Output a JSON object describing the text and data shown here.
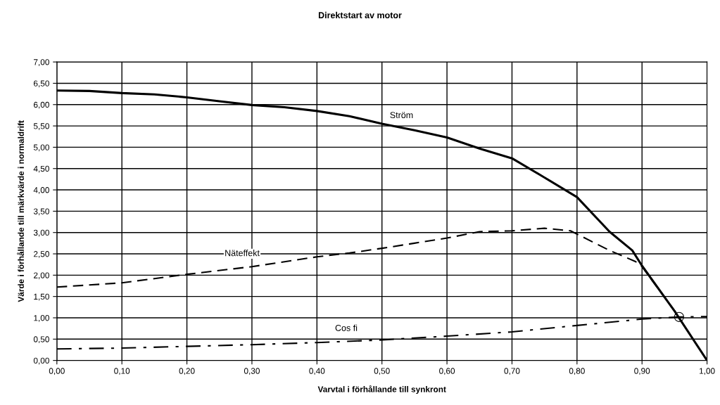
{
  "chart_data": {
    "type": "line",
    "title": "Direktstart av motor",
    "xlabel": "Varvtal i förhållande till synkront",
    "ylabel": "Värde i förhållande till märkvärde i normaldrift",
    "series": [
      {
        "name": "Ström",
        "color": "#000000",
        "line_style": "solid",
        "x": [
          0,
          0.05,
          0.1,
          0.15,
          0.2,
          0.25,
          0.3,
          0.35,
          0.4,
          0.45,
          0.5,
          0.55,
          0.6,
          0.65,
          0.7,
          0.75,
          0.8,
          0.85,
          0.885,
          0.9,
          0.95,
          1.0
        ],
        "values": [
          6.33,
          6.32,
          6.27,
          6.24,
          6.17,
          6.08,
          5.99,
          5.94,
          5.85,
          5.73,
          5.55,
          5.4,
          5.23,
          4.97,
          4.74,
          4.29,
          3.83,
          3.02,
          2.58,
          2.22,
          1.16,
          0
        ]
      },
      {
        "name": "Näteffekt",
        "color": "#000000",
        "line_style": "dashed",
        "x": [
          0,
          0.05,
          0.1,
          0.2,
          0.3,
          0.4,
          0.45,
          0.5,
          0.55,
          0.6,
          0.65,
          0.7,
          0.75,
          0.79,
          0.85,
          0.89,
          0.9,
          0.957
        ],
        "values": [
          1.72,
          1.77,
          1.82,
          2.02,
          2.2,
          2.43,
          2.52,
          2.63,
          2.75,
          2.87,
          3.02,
          3.04,
          3.1,
          3.04,
          2.58,
          2.32,
          2.2,
          1.02
        ]
      },
      {
        "name": "Cos fi",
        "color": "#000000",
        "line_style": "dashdot",
        "x": [
          0,
          0.1,
          0.2,
          0.3,
          0.4,
          0.5,
          0.6,
          0.7,
          0.8,
          0.9,
          0.957,
          1.0
        ],
        "values": [
          0.27,
          0.29,
          0.33,
          0.37,
          0.42,
          0.48,
          0.57,
          0.67,
          0.82,
          0.97,
          1.02,
          1.03
        ]
      },
      {
        "type": "scatter",
        "marker": "circle",
        "color": "#000000",
        "x": [
          0.957
        ],
        "values": [
          1.02
        ]
      }
    ],
    "xlim": [
      0,
      1
    ],
    "ylim": [
      0,
      7
    ],
    "xticks": [
      {
        "value": 0,
        "label": "0,00"
      },
      {
        "value": 0.1,
        "label": "0,10"
      },
      {
        "value": 0.2,
        "label": "0,20"
      },
      {
        "value": 0.3,
        "label": "0,30"
      },
      {
        "value": 0.4,
        "label": "0,40"
      },
      {
        "value": 0.5,
        "label": "0,50"
      },
      {
        "value": 0.6,
        "label": "0,60"
      },
      {
        "value": 0.7,
        "label": "0,70"
      },
      {
        "value": 0.8,
        "label": "0,80"
      },
      {
        "value": 0.9,
        "label": "0,90"
      },
      {
        "value": 1.0,
        "label": "1,00"
      }
    ],
    "yticks": [
      {
        "value": 0,
        "label": "0,00"
      },
      {
        "value": 0.5,
        "label": "0,50"
      },
      {
        "value": 1,
        "label": "1,00"
      },
      {
        "value": 1.5,
        "label": "1,50"
      },
      {
        "value": 2,
        "label": "2,00"
      },
      {
        "value": 2.5,
        "label": "2,50"
      },
      {
        "value": 3,
        "label": "3,00"
      },
      {
        "value": 3.5,
        "label": "3,50"
      },
      {
        "value": 4,
        "label": "4,00"
      },
      {
        "value": 4.5,
        "label": "4,50"
      },
      {
        "value": 5,
        "label": "5,00"
      },
      {
        "value": 5.5,
        "label": "5,50"
      },
      {
        "value": 6,
        "label": "6,00"
      },
      {
        "value": 6.5,
        "label": "6,50"
      },
      {
        "value": 7,
        "label": "7,00"
      }
    ],
    "grid": true,
    "legend": false
  }
}
